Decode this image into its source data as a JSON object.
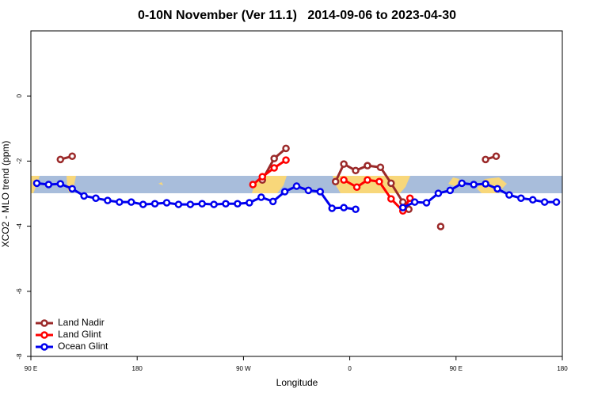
{
  "chart_data": {
    "type": "line",
    "title": "0-10N November (Ver 11.1)   2014-09-06 to 2023-04-30",
    "x_label": "Longitude",
    "y_label": "XCO2 - MLO trend (ppm)",
    "xlim": [
      90,
      540
    ],
    "xticks": [
      {
        "value": 90,
        "label": "90 E"
      },
      180,
      {
        "value": 270,
        "label": "90 W"
      },
      {
        "value": 360,
        "label": "0"
      },
      {
        "value": 450,
        "label": "90 E"
      },
      {
        "value": 540,
        "label": "180"
      }
    ],
    "ylim": [
      -8,
      2
    ],
    "yticks": [
      0,
      -2,
      -4,
      -6,
      -8
    ],
    "legend": "bottom-left",
    "series": [
      {
        "name": "Land Nadir",
        "color": "#9b2a2a",
        "x": [
          115,
          125,
          null,
          286,
          296,
          306,
          null,
          348,
          355,
          365,
          375,
          386,
          395,
          405,
          410,
          null,
          437,
          null,
          475,
          484
        ],
        "values": [
          -1.95,
          -1.85,
          null,
          -2.58,
          -1.92,
          -1.61,
          null,
          -2.63,
          -2.09,
          -2.29,
          -2.14,
          -2.19,
          -2.68,
          -3.26,
          -3.48,
          null,
          -4.01,
          null,
          -1.95,
          -1.85
        ]
      },
      {
        "name": "Land Glint",
        "color": "#ff0000",
        "x": [
          278,
          286,
          296,
          306,
          null,
          355,
          366,
          375,
          385,
          395,
          405,
          411
        ],
        "values": [
          -2.72,
          -2.48,
          -2.21,
          -1.97,
          null,
          -2.58,
          -2.8,
          -2.58,
          -2.63,
          -3.16,
          -3.53,
          -3.14
        ]
      },
      {
        "name": "Ocean Glint",
        "color": "#0000ee",
        "x": [
          95,
          105,
          115,
          125,
          135,
          145,
          155,
          165,
          175,
          185,
          195,
          205,
          215,
          225,
          235,
          245,
          255,
          265,
          275,
          285,
          295,
          305,
          315,
          325,
          335,
          345,
          355,
          365,
          null,
          405,
          415,
          425,
          435,
          445,
          455,
          465,
          475,
          485,
          495,
          505,
          515,
          525,
          535
        ],
        "values": [
          -2.68,
          -2.72,
          -2.7,
          -2.85,
          -3.07,
          -3.14,
          -3.21,
          -3.26,
          -3.26,
          -3.33,
          -3.31,
          -3.28,
          -3.33,
          -3.33,
          -3.31,
          -3.33,
          -3.31,
          -3.31,
          -3.28,
          -3.11,
          -3.24,
          -2.94,
          -2.77,
          -2.9,
          -2.94,
          -3.45,
          -3.43,
          -3.48,
          null,
          -3.43,
          -3.26,
          -3.28,
          -2.99,
          -2.9,
          -2.68,
          -2.72,
          -2.7,
          -2.85,
          -3.04,
          -3.14,
          -3.19,
          -3.26,
          -3.26
        ]
      }
    ]
  }
}
